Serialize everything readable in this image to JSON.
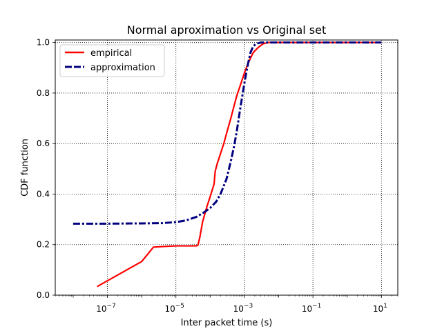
{
  "chart_data": {
    "type": "line",
    "title": "Normal aproximation vs Original set",
    "xlabel": "Inter packet time (s)",
    "ylabel": "CDF function",
    "xscale": "log",
    "xlim": [
      3e-09,
      30
    ],
    "ylim": [
      0,
      1.01
    ],
    "x_ticks": [
      {
        "exp": -7,
        "label_base": "10",
        "label_exp": "−7"
      },
      {
        "exp": -5,
        "label_base": "10",
        "label_exp": "−5"
      },
      {
        "exp": -3,
        "label_base": "10",
        "label_exp": "−3"
      },
      {
        "exp": -1,
        "label_base": "10",
        "label_exp": "−1"
      },
      {
        "exp": 1,
        "label_base": "10",
        "label_exp": "1"
      }
    ],
    "y_ticks": [
      {
        "value": 0.0,
        "label": "0.0"
      },
      {
        "value": 0.2,
        "label": "0.2"
      },
      {
        "value": 0.4,
        "label": "0.4"
      },
      {
        "value": 0.6,
        "label": "0.6"
      },
      {
        "value": 0.8,
        "label": "0.8"
      },
      {
        "value": 1.0,
        "label": "1.0"
      }
    ],
    "grid": true,
    "legend_position": "top-left",
    "series": [
      {
        "name": "empirical",
        "color": "#ff0000",
        "style": "solid",
        "points": [
          [
            5e-08,
            0.034
          ],
          [
            1e-06,
            0.133
          ],
          [
            2.2e-06,
            0.19
          ],
          [
            5e-06,
            0.193
          ],
          [
            1e-05,
            0.195
          ],
          [
            2e-05,
            0.195
          ],
          [
            4e-05,
            0.195
          ],
          [
            4.4e-05,
            0.198
          ],
          [
            5e-05,
            0.23
          ],
          [
            6e-05,
            0.29
          ],
          [
            8e-05,
            0.35
          ],
          [
            0.0001,
            0.39
          ],
          [
            0.00013,
            0.44
          ],
          [
            0.00014,
            0.49
          ],
          [
            0.00016,
            0.52
          ],
          [
            0.0002,
            0.56
          ],
          [
            0.00025,
            0.6
          ],
          [
            0.0003,
            0.64
          ],
          [
            0.0004,
            0.7
          ],
          [
            0.0005,
            0.75
          ],
          [
            0.0006,
            0.79
          ],
          [
            0.0008,
            0.84
          ],
          [
            0.001,
            0.88
          ],
          [
            0.0013,
            0.92
          ],
          [
            0.0018,
            0.96
          ],
          [
            0.0025,
            0.98
          ],
          [
            0.0035,
            0.995
          ],
          [
            0.005,
            1.0
          ],
          [
            0.01,
            1.0
          ],
          [
            1,
            1.0
          ],
          [
            10,
            1.0
          ]
        ]
      },
      {
        "name": "approximation",
        "color": "#00007f",
        "style": "dash-dot",
        "points": [
          [
            1e-08,
            0.283
          ],
          [
            1e-07,
            0.283
          ],
          [
            1e-06,
            0.284
          ],
          [
            4e-06,
            0.285
          ],
          [
            1e-05,
            0.289
          ],
          [
            2e-05,
            0.296
          ],
          [
            4e-05,
            0.31
          ],
          [
            7e-05,
            0.33
          ],
          [
            0.0001,
            0.345
          ],
          [
            0.00015,
            0.37
          ],
          [
            0.0002,
            0.4
          ],
          [
            0.0003,
            0.46
          ],
          [
            0.0004,
            0.53
          ],
          [
            0.0005,
            0.59
          ],
          [
            0.0006,
            0.65
          ],
          [
            0.0007,
            0.71
          ],
          [
            0.0008,
            0.76
          ],
          [
            0.001,
            0.84
          ],
          [
            0.0012,
            0.9
          ],
          [
            0.0015,
            0.96
          ],
          [
            0.0018,
            0.985
          ],
          [
            0.0022,
            0.995
          ],
          [
            0.003,
            1.0
          ],
          [
            0.01,
            1.0
          ],
          [
            1,
            1.0
          ],
          [
            10,
            1.0
          ]
        ]
      }
    ]
  }
}
